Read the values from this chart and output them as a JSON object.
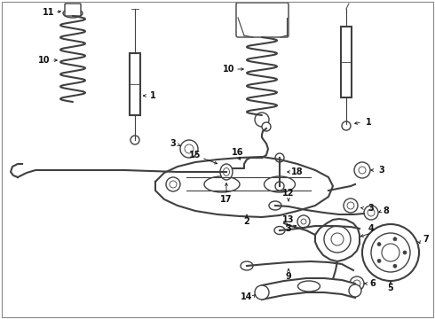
{
  "bg_color": "#ffffff",
  "line_color": "#404040",
  "figsize": [
    4.9,
    3.6
  ],
  "dpi": 100,
  "xlim": [
    0,
    490
  ],
  "ylim": [
    0,
    360
  ]
}
